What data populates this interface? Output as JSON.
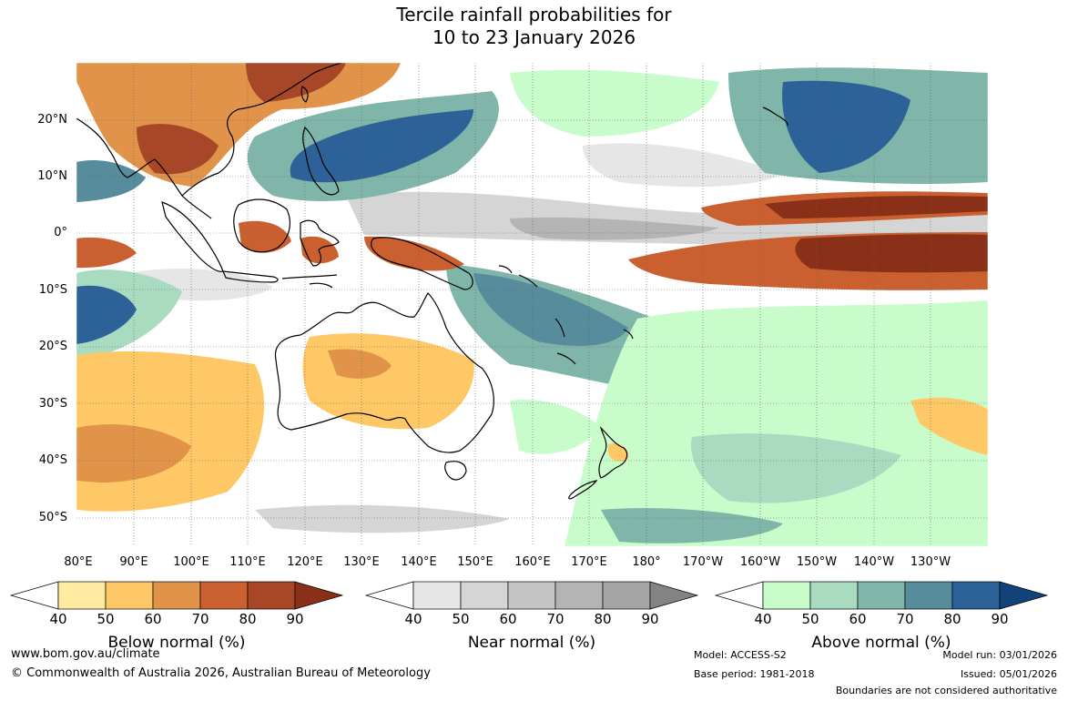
{
  "title": {
    "line1": "Tercile rainfall probabilities for",
    "line2": "10 to 23 January 2026"
  },
  "map": {
    "latitude_labels": [
      "20°N",
      "10°N",
      "0°",
      "10°S",
      "20°S",
      "30°S",
      "40°S",
      "50°S"
    ],
    "longitude_labels": [
      "80°E",
      "90°E",
      "100°E",
      "110°E",
      "120°E",
      "130°E",
      "140°E",
      "150°E",
      "160°E",
      "170°E",
      "180°",
      "170°W",
      "160°W",
      "150°W",
      "140°W",
      "130°W"
    ],
    "ocean_color": "#ffffff",
    "coastline_color": "#000000",
    "border_color": "#888888"
  },
  "legends": {
    "below": {
      "title": "Below normal (%)",
      "ticks": [
        "40",
        "50",
        "60",
        "70",
        "80",
        "90"
      ],
      "colors": [
        "#ffffff",
        "#feeaa0",
        "#fdc865",
        "#e1934a",
        "#ca6030",
        "#a84628",
        "#8a3018"
      ]
    },
    "near": {
      "title": "Near normal (%)",
      "ticks": [
        "40",
        "50",
        "60",
        "70",
        "80",
        "90"
      ],
      "colors": [
        "#ffffff",
        "#e6e6e6",
        "#d5d5d5",
        "#c5c5c5",
        "#b4b4b4",
        "#a5a5a5",
        "#838383"
      ]
    },
    "above": {
      "title": "Above normal (%)",
      "ticks": [
        "40",
        "50",
        "60",
        "70",
        "80",
        "90"
      ],
      "colors": [
        "#ffffff",
        "#c8fcca",
        "#a8dbbf",
        "#80b5a9",
        "#568c9c",
        "#2c6298",
        "#12427a"
      ]
    }
  },
  "footer": {
    "website": "www.bom.gov.au/climate",
    "copyright": "© Commonwealth of Australia 2026, Australian Bureau of Meteorology",
    "model": "Model: ACCESS-S2",
    "base_period": "Base period: 1981-2018",
    "model_run": "Model run: 03/01/2026",
    "issued": "Issued: 05/01/2026",
    "disclaimer": "Boundaries are not considered authoritative"
  }
}
